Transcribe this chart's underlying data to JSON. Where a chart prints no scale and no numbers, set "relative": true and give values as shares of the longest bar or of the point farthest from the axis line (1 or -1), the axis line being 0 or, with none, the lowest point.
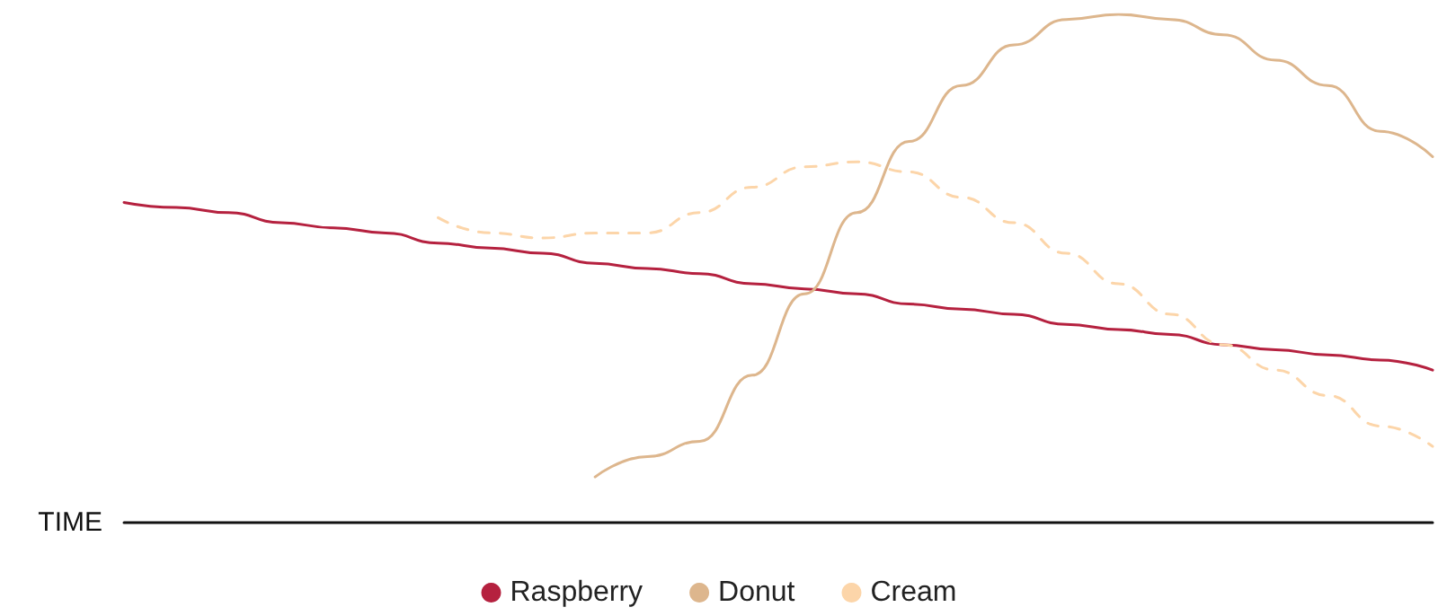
{
  "chart_data": {
    "type": "line",
    "relative": true,
    "xlabel": "TIME",
    "legend": "bottom",
    "marker": "none",
    "grid": false,
    "categories": [
      null,
      null,
      null,
      null,
      null,
      null,
      null,
      null,
      null,
      null,
      null,
      null,
      null,
      null,
      null,
      null,
      null,
      null,
      null,
      null,
      null,
      null,
      null,
      null,
      null,
      null
    ],
    "series": [
      {
        "name": "Raspberry",
        "color": "#b5213f",
        "line_style": "solid",
        "values": [
          0.63,
          0.62,
          0.61,
          0.59,
          0.58,
          0.57,
          0.55,
          0.54,
          0.53,
          0.51,
          0.5,
          0.49,
          0.47,
          0.46,
          0.45,
          0.43,
          0.42,
          0.41,
          0.39,
          0.38,
          0.37,
          0.35,
          0.34,
          0.33,
          0.32,
          0.3
        ]
      },
      {
        "name": "Donut",
        "color": "#ddb68d",
        "line_style": "solid",
        "values": [
          null,
          null,
          null,
          null,
          null,
          null,
          null,
          null,
          null,
          0.09,
          0.13,
          0.16,
          0.29,
          0.45,
          0.61,
          0.75,
          0.86,
          0.94,
          0.99,
          1,
          0.99,
          0.96,
          0.91,
          0.86,
          0.77,
          0.72
        ]
      },
      {
        "name": "Cream",
        "color": "#fcd5a9",
        "line_style": "dashed",
        "values": [
          null,
          null,
          null,
          null,
          null,
          null,
          0.6,
          0.57,
          0.56,
          0.57,
          0.57,
          0.61,
          0.66,
          0.7,
          0.71,
          0.69,
          0.64,
          0.59,
          0.53,
          0.47,
          0.41,
          0.35,
          0.3,
          0.25,
          0.19,
          0.15
        ]
      }
    ]
  }
}
